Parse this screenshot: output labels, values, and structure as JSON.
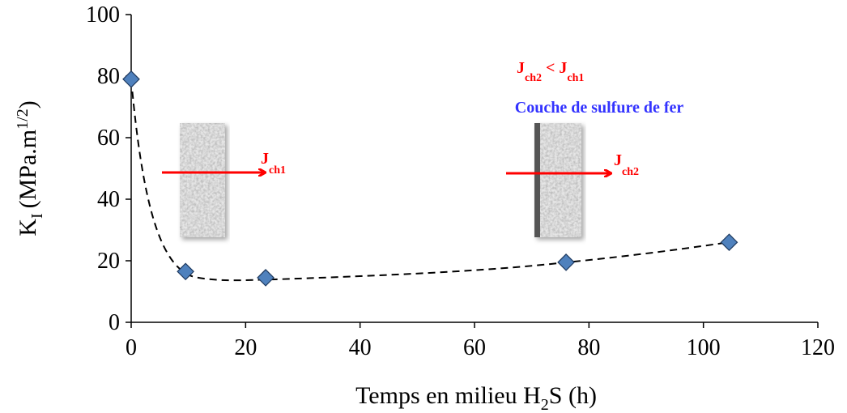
{
  "chart_data": {
    "type": "scatter",
    "x": [
      0,
      9.5,
      23.5,
      76,
      104.5
    ],
    "series": [
      {
        "color": "#4f81bd",
        "values": [
          79,
          16.5,
          14.5,
          19.5,
          26
        ]
      }
    ],
    "xlim": [
      0,
      120
    ],
    "xticks": [
      0,
      20,
      40,
      60,
      80,
      100,
      120
    ],
    "ylim": [
      0,
      100
    ],
    "yticks": [
      0,
      20,
      40,
      60,
      80,
      100
    ],
    "grid": false,
    "x_label": {
      "main": "Temps en milieu H",
      "sub": "2",
      "end": "S (h)"
    },
    "y_label": {
      "main": "K",
      "sub": "I",
      "rest": "(MPa.m",
      "sup": "1/2",
      "end": ")"
    },
    "annotations": {
      "flux_1": {
        "main": "J",
        "sub": "ch1"
      },
      "flux_2": {
        "main": "J",
        "sub": "ch2"
      },
      "comparison": {
        "main_1": "J",
        "sub_1": "ch2",
        "op": " < ",
        "main_2": "J",
        "sub_2": "ch1"
      },
      "layer": "Couche de sulfure de fer"
    }
  }
}
